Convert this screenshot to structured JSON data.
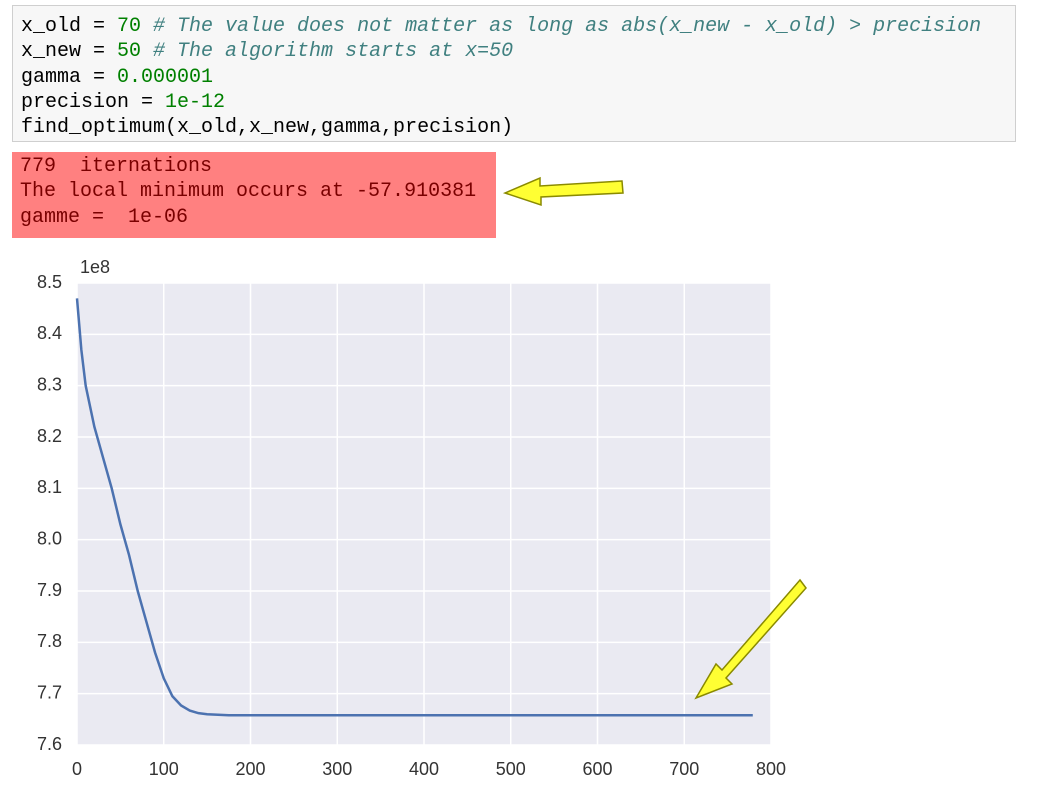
{
  "code_cell": {
    "lines": [
      {
        "code": "x_old = ",
        "number": "70",
        "comment": "# The value does not matter as long as abs(x_new - x_old) > precision"
      },
      {
        "code": "x_new = ",
        "number": "50",
        "comment": "# The algorithm starts at x=50"
      },
      {
        "code": "gamma = ",
        "number": "0.000001"
      },
      {
        "code": "precision = ",
        "number": "1e-12"
      },
      {
        "code": "find_optimum(x_old,x_new,gamma,precision)"
      }
    ]
  },
  "output": {
    "lines": [
      "779  iternations",
      "The local minimum occurs at -57.910381",
      "gamme =  1e-06"
    ]
  },
  "chart_data": {
    "type": "line",
    "offset_label": "1e8",
    "color": "#4c72b0",
    "grid": true,
    "x": [
      0,
      5,
      10,
      20,
      30,
      40,
      50,
      60,
      70,
      80,
      90,
      100,
      110,
      120,
      130,
      140,
      150,
      175,
      200,
      300,
      400,
      500,
      600,
      700,
      779
    ],
    "values": [
      8.47,
      8.37,
      8.3,
      8.22,
      8.16,
      8.1,
      8.03,
      7.97,
      7.9,
      7.84,
      7.78,
      7.73,
      7.695,
      7.677,
      7.667,
      7.662,
      7.66,
      7.658,
      7.658,
      7.658,
      7.658,
      7.658,
      7.658,
      7.658,
      7.658
    ],
    "xlim": [
      0,
      800
    ],
    "xticks": [
      0,
      100,
      200,
      300,
      400,
      500,
      600,
      700,
      800
    ],
    "ylim": [
      7.6,
      8.5
    ],
    "yticks": [
      7.6,
      7.7,
      7.8,
      7.9,
      8.0,
      8.1,
      8.2,
      8.3,
      8.4,
      8.5
    ]
  }
}
